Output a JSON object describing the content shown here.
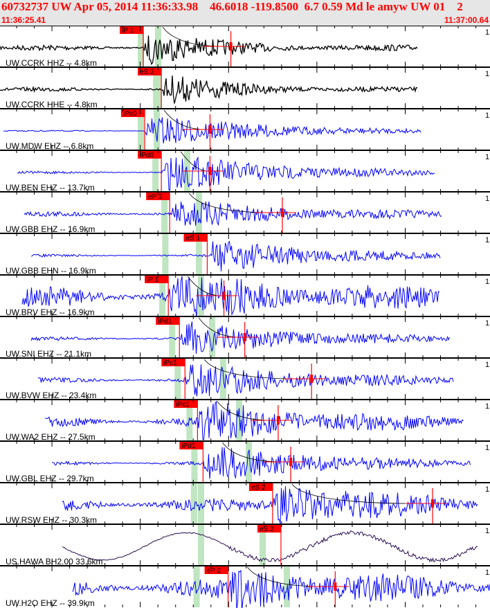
{
  "header": {
    "title": "60732737 UW Apr 05, 2014 11:36:33.98    46.6018 -119.8500  6.7 0.59 Md le amyw UW 01    2",
    "start_time": "11:36:25.41",
    "end_time": "11:37:00.64"
  },
  "chart_data": {
    "type": "line",
    "title": "60732737 UW Apr 05, 2014 11:36:33.98",
    "x_range_label": [
      "11:36:25.41",
      "11:37:00.64"
    ],
    "duration_s": 35.23,
    "scale_label": "1",
    "traces": [
      {
        "label": "UW.CCRK HHZ -- 4.8km",
        "pick": "iP 1",
        "pick_t": 10.3,
        "s_t": 16.6,
        "color": "#000000"
      },
      {
        "label": "UW.CCRK HHE -- 4.8km",
        "pick": "eS 2",
        "pick_t": 11.6,
        "s_t": null,
        "color": "#000000"
      },
      {
        "label": "UW.MDW EHZ -- 6.8km",
        "pick": "iPc0",
        "pick_t": 10.4,
        "s_t": 15.1,
        "color": "#0000ff"
      },
      {
        "label": "UW.BEN EHZ -- 13.7km",
        "pick": "iPd0",
        "pick_t": 11.6,
        "s_t": 15.1,
        "color": "#0000ff"
      },
      {
        "label": "UW.GBB EHZ -- 16.9km",
        "pick": "eP 2",
        "pick_t": 12.2,
        "s_t": 20.3,
        "color": "#0000ff"
      },
      {
        "label": "UW.GBB EHN -- 16.9km",
        "pick": "eS 1",
        "pick_t": 14.9,
        "s_t": null,
        "color": "#0000ff"
      },
      {
        "label": "UW.BRV EHZ -- 16.9km",
        "pick": "iP 1",
        "pick_t": 12.1,
        "s_t": 16.1,
        "color": "#0000ff"
      },
      {
        "label": "UW.SNI EHZ -- 21.1km",
        "pick": "iPd1",
        "pick_t": 12.9,
        "s_t": 17.6,
        "color": "#0000ff"
      },
      {
        "label": "UW.BVW EHZ -- 23.4km",
        "pick": "iPc1",
        "pick_t": 13.3,
        "s_t": 22.4,
        "color": "#0000ff"
      },
      {
        "label": "UW.WA2 EHZ -- 27.5km",
        "pick": "iPc1",
        "pick_t": 14.2,
        "s_t": 20.0,
        "color": "#0000ff"
      },
      {
        "label": "UW.GBL EHZ -- 29.7km",
        "pick": "iPd1",
        "pick_t": 14.6,
        "s_t": 20.9,
        "color": "#0000ff"
      },
      {
        "label": "UW.RSW EHZ -- 30.3km",
        "pick": "eS 2",
        "pick_t": 19.6,
        "s_t": 31.1,
        "color": "#0000ff"
      },
      {
        "label": "US.HAWA BH2.00 33.6km",
        "pick": "eS 2",
        "pick_t": 20.2,
        "s_t": null,
        "color": "#2a1050"
      },
      {
        "label": "UW.H2O EHZ -- 39.9km",
        "pick": "eP 2",
        "pick_t": 16.4,
        "s_t": 24.1,
        "color": "#0000ff"
      }
    ]
  }
}
